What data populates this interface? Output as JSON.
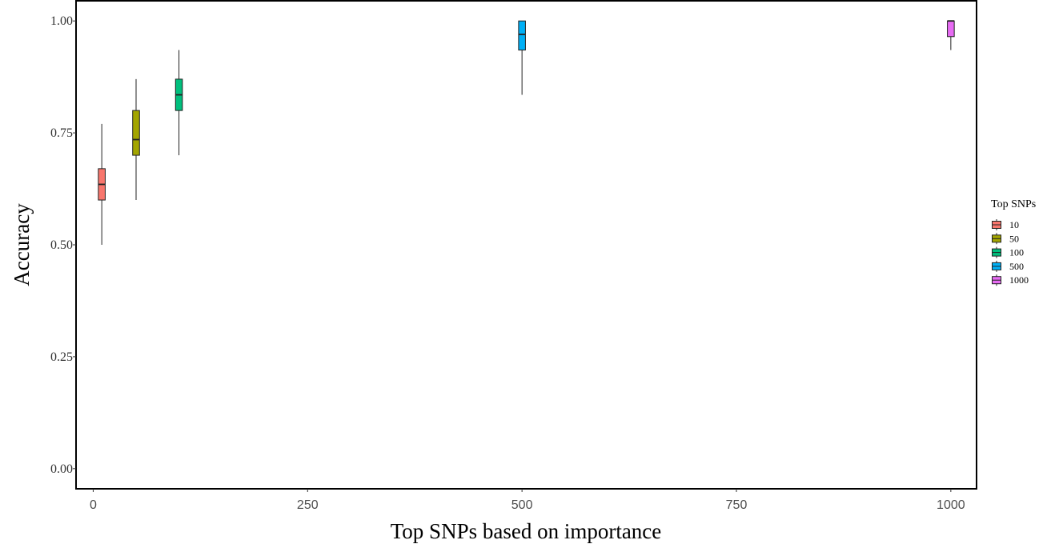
{
  "chart_data": {
    "type": "boxplot",
    "xlabel": "Top SNPs based on importance",
    "ylabel": "Accuracy",
    "xlim": [
      -20,
      1030
    ],
    "ylim": [
      -0.045,
      1.045
    ],
    "x_ticks": [
      0,
      250,
      500,
      750,
      1000
    ],
    "x_tick_labels": [
      "0",
      "250",
      "500",
      "750",
      "1000"
    ],
    "y_ticks": [
      0.0,
      0.25,
      0.5,
      0.75,
      1.0
    ],
    "y_tick_labels": [
      "0.00",
      "0.25",
      "0.50",
      "0.75",
      "1.00"
    ],
    "grid": false,
    "legend": {
      "title": "Top SNPs",
      "position": "right",
      "entries": [
        "10",
        "50",
        "100",
        "500",
        "1000"
      ]
    },
    "box_width": 8,
    "series": [
      {
        "name": "10",
        "x": 10,
        "color": "#F8766D",
        "whisker_low": 0.5,
        "q1": 0.6,
        "median": 0.635,
        "q3": 0.67,
        "whisker_high": 0.77
      },
      {
        "name": "50",
        "x": 50,
        "color": "#A3A500",
        "whisker_low": 0.6,
        "q1": 0.7,
        "median": 0.735,
        "q3": 0.8,
        "whisker_high": 0.87
      },
      {
        "name": "100",
        "x": 100,
        "color": "#00BF7D",
        "whisker_low": 0.7,
        "q1": 0.8,
        "median": 0.835,
        "q3": 0.87,
        "whisker_high": 0.935
      },
      {
        "name": "500",
        "x": 500,
        "color": "#00B0F6",
        "whisker_low": 0.835,
        "q1": 0.935,
        "median": 0.97,
        "q3": 1.0,
        "whisker_high": 1.0
      },
      {
        "name": "1000",
        "x": 1000,
        "color": "#E76BF3",
        "whisker_low": 0.935,
        "q1": 0.965,
        "median": 1.0,
        "q3": 1.0,
        "whisker_high": 1.0
      }
    ]
  }
}
